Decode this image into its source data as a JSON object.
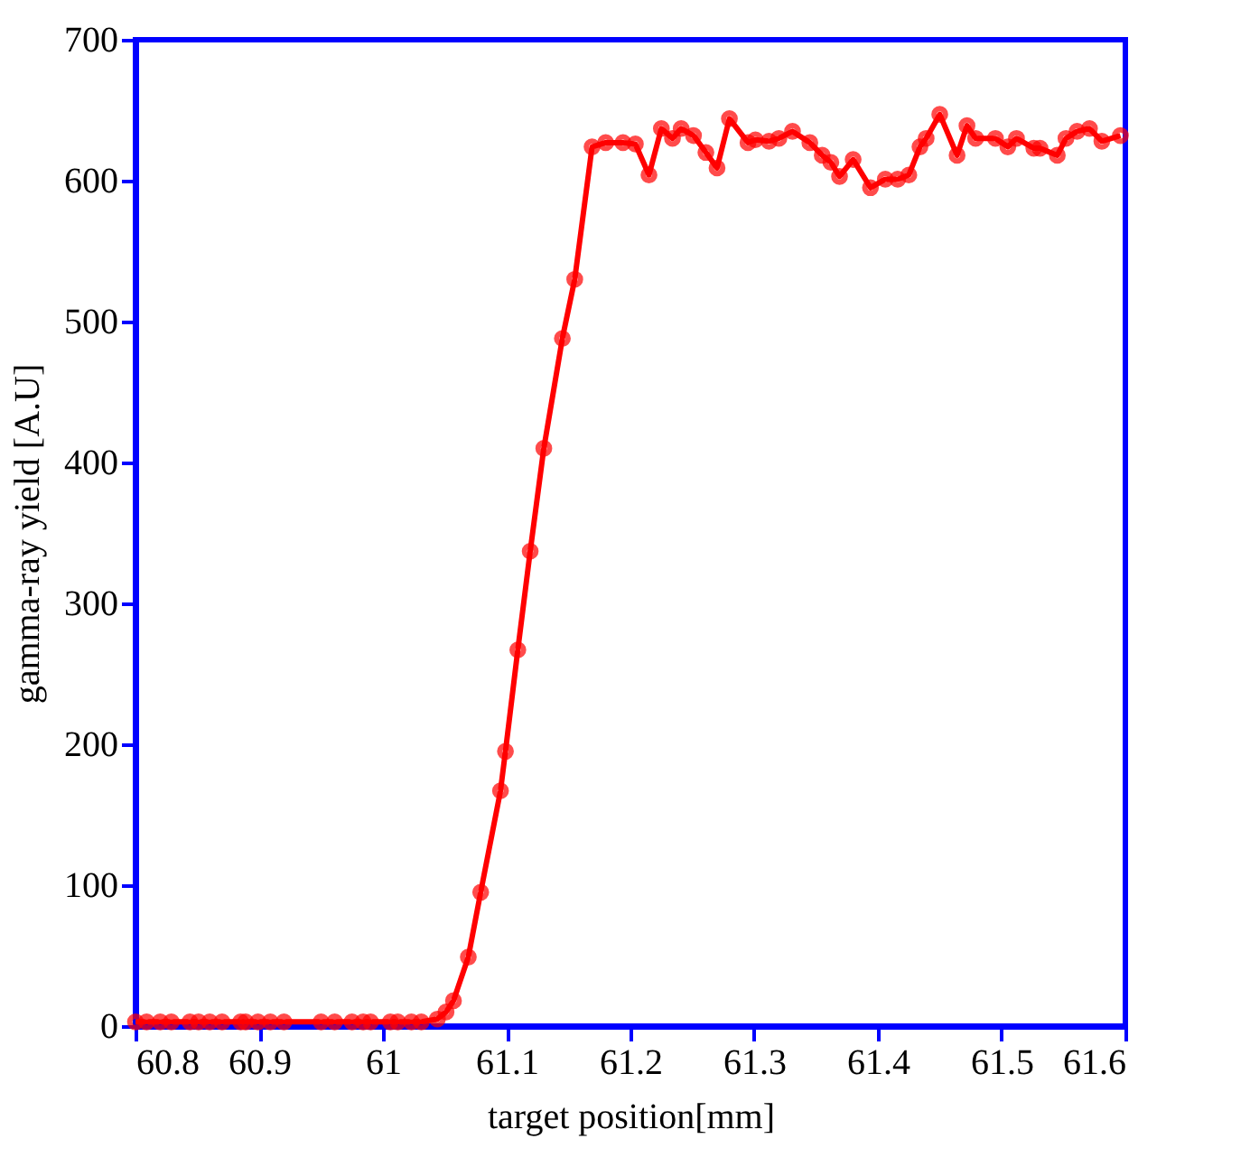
{
  "chart_data": {
    "type": "line",
    "xlabel": "target position[mm]",
    "ylabel": "gamma-ray yield [A.U]",
    "series": [
      {
        "color": "#ff0000",
        "x": [
          60.8,
          60.809,
          60.82,
          60.829,
          60.844,
          60.851,
          60.86,
          60.87,
          60.885,
          60.889,
          60.899,
          60.909,
          60.92,
          60.95,
          60.961,
          60.975,
          60.984,
          60.99,
          61.006,
          61.012,
          61.023,
          61.031,
          61.044,
          61.051,
          61.057,
          61.069,
          61.079,
          61.095,
          61.099,
          61.109,
          61.119,
          61.13,
          61.145,
          61.155,
          61.169,
          61.18,
          61.194,
          61.204,
          61.215,
          61.225,
          61.234,
          61.241,
          61.251,
          61.261,
          61.27,
          61.28,
          61.295,
          61.301,
          61.312,
          61.32,
          61.331,
          61.345,
          61.355,
          61.362,
          61.369,
          61.38,
          61.394,
          61.406,
          61.416,
          61.425,
          61.434,
          61.439,
          61.45,
          61.464,
          61.472,
          61.479,
          61.495,
          61.505,
          61.512,
          61.526,
          61.531,
          61.545,
          61.552,
          61.561,
          61.571,
          61.581,
          61.596
        ],
        "values": [
          3,
          3,
          3,
          3,
          3,
          3,
          3,
          3,
          3,
          3,
          3,
          3,
          3,
          3,
          3,
          3,
          3,
          3,
          3,
          3,
          3,
          3,
          5,
          10,
          18,
          49,
          95,
          167,
          195,
          267,
          337,
          410,
          488,
          530,
          624,
          627,
          627,
          626,
          604,
          637,
          630,
          637,
          632,
          620,
          609,
          644,
          627,
          629,
          628,
          630,
          635,
          627,
          618,
          613,
          603,
          615,
          595,
          601,
          601,
          604,
          624,
          630,
          647,
          618,
          639,
          630,
          630,
          624,
          630,
          623,
          623,
          618,
          630,
          635,
          637,
          628,
          632
        ]
      }
    ],
    "xlim": [
      60.8,
      61.6
    ],
    "xticks": [
      60.8,
      60.9,
      61,
      61.1,
      61.2,
      61.3,
      61.4,
      61.5,
      61.6
    ],
    "ylim": [
      0,
      700
    ],
    "yticks": [
      0,
      100,
      200,
      300,
      400,
      500,
      600,
      700
    ],
    "marker": "circle",
    "line_style": "solid",
    "grid": false,
    "legend": false
  }
}
